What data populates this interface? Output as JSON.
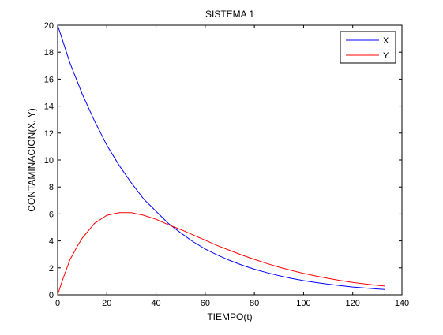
{
  "chart_data": {
    "type": "line",
    "title": "SISTEMA 1",
    "xlabel": "TIEMPO(t)",
    "ylabel": "CONTAMINACION(X, Y)",
    "xlim": [
      0,
      140
    ],
    "ylim": [
      0,
      20
    ],
    "xticks": [
      "0",
      "20",
      "40",
      "60",
      "80",
      "100",
      "120",
      "140"
    ],
    "yticks": [
      "0",
      "2",
      "4",
      "6",
      "8",
      "10",
      "12",
      "14",
      "16",
      "18",
      "20"
    ],
    "grid": false,
    "legend_position": "top-right",
    "series": [
      {
        "name": "X",
        "color": "#0000ff",
        "x": [
          0,
          5,
          10,
          15,
          20,
          25,
          30,
          35,
          40,
          45,
          50,
          55,
          60,
          65,
          70,
          75,
          80,
          85,
          90,
          95,
          100,
          105,
          110,
          115,
          120,
          125,
          130,
          133
        ],
        "y": [
          20.0,
          17.2,
          14.9,
          12.9,
          11.1,
          9.6,
          8.3,
          7.1,
          6.2,
          5.3,
          4.6,
          3.95,
          3.4,
          2.95,
          2.55,
          2.2,
          1.9,
          1.65,
          1.42,
          1.22,
          1.05,
          0.91,
          0.79,
          0.68,
          0.58,
          0.5,
          0.43,
          0.4
        ]
      },
      {
        "name": "Y",
        "color": "#ff0000",
        "x": [
          0,
          2,
          5,
          8,
          10,
          15,
          20,
          25,
          30,
          35,
          40,
          45,
          50,
          55,
          60,
          65,
          70,
          75,
          80,
          85,
          90,
          95,
          100,
          105,
          110,
          115,
          120,
          125,
          130,
          133
        ],
        "y": [
          0.0,
          1.1,
          2.6,
          3.6,
          4.2,
          5.3,
          5.9,
          6.1,
          6.1,
          5.9,
          5.6,
          5.2,
          4.85,
          4.45,
          4.05,
          3.65,
          3.3,
          2.95,
          2.63,
          2.33,
          2.05,
          1.81,
          1.59,
          1.4,
          1.22,
          1.06,
          0.92,
          0.8,
          0.7,
          0.65
        ]
      }
    ]
  }
}
